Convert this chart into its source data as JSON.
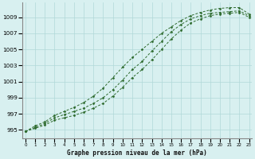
{
  "xlabel": "Graphe pression niveau de la mer (hPa)",
  "x": [
    0,
    1,
    2,
    3,
    4,
    5,
    6,
    7,
    8,
    9,
    10,
    11,
    12,
    13,
    14,
    15,
    16,
    17,
    18,
    19,
    20,
    21,
    22,
    23
  ],
  "line1": [
    994.8,
    995.3,
    995.8,
    996.5,
    996.9,
    997.3,
    997.7,
    998.3,
    999.0,
    1000.0,
    1001.2,
    1002.5,
    1003.5,
    1004.8,
    1006.0,
    1007.2,
    1008.1,
    1008.8,
    1009.2,
    1009.5,
    1009.6,
    1009.7,
    1009.8,
    1009.2
  ],
  "line2": [
    994.8,
    995.2,
    995.6,
    996.2,
    996.5,
    996.8,
    997.2,
    997.7,
    998.3,
    999.2,
    1000.3,
    1001.5,
    1002.5,
    1003.7,
    1005.0,
    1006.3,
    1007.4,
    1008.3,
    1008.8,
    1009.2,
    1009.4,
    1009.5,
    1009.6,
    1009.0
  ],
  "line3": [
    994.8,
    995.5,
    996.0,
    996.8,
    997.3,
    997.8,
    998.4,
    999.2,
    1000.2,
    1001.5,
    1002.8,
    1004.0,
    1005.0,
    1006.0,
    1007.0,
    1007.8,
    1008.6,
    1009.2,
    1009.6,
    1009.9,
    1010.1,
    1010.2,
    1010.2,
    1009.4
  ],
  "line_color": "#2d6a2d",
  "background_color": "#d8f0f0",
  "grid_color": "#b0d8d8",
  "yticks": [
    995,
    997,
    999,
    1001,
    1003,
    1005,
    1007,
    1009
  ],
  "ymin": 994.0,
  "ymax": 1010.8,
  "xmin": -0.3,
  "xmax": 23.3
}
